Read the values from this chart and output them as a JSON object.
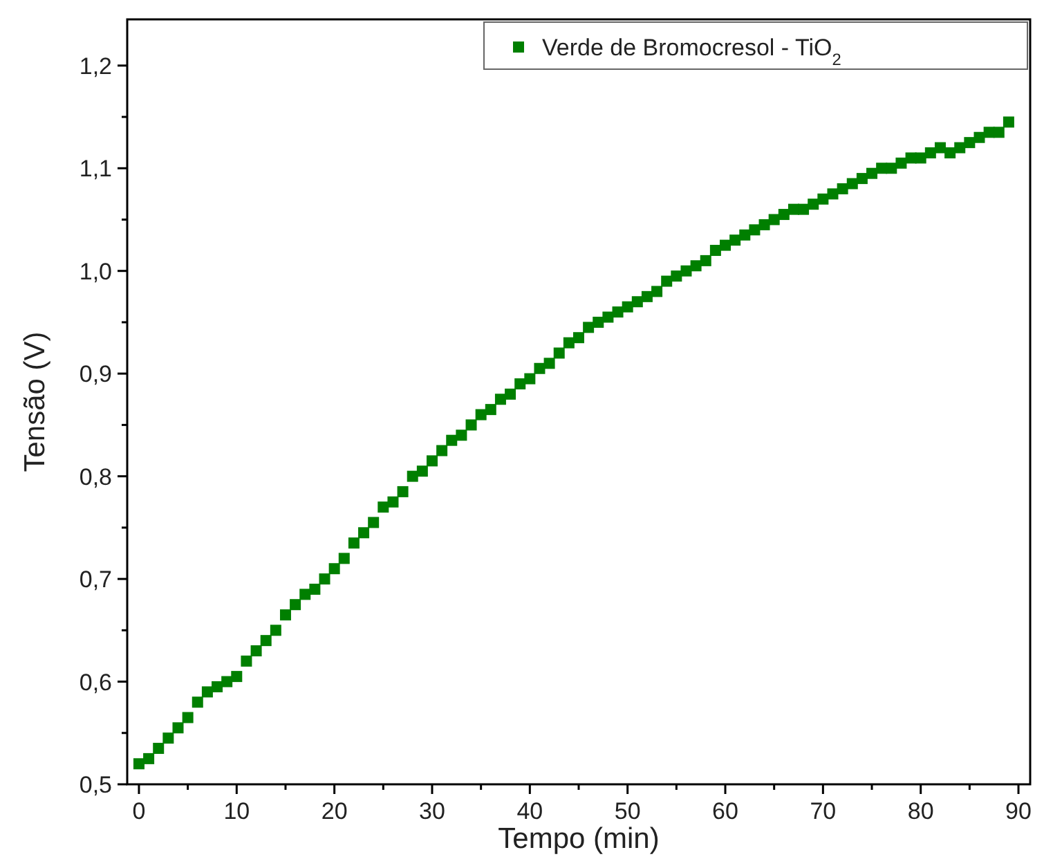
{
  "chart_data": {
    "type": "scatter",
    "xlabel": "Tempo (min)",
    "ylabel": "Tensão (V)",
    "xlim": [
      -1.2,
      91.2
    ],
    "ylim": [
      0.5,
      1.245
    ],
    "xticks": [
      0,
      {
        "value": 5,
        "label": null
      },
      10,
      {
        "value": 15,
        "label": null
      },
      20,
      {
        "value": 25,
        "label": null
      },
      30,
      {
        "value": 35,
        "label": null
      },
      40,
      {
        "value": 45,
        "label": null
      },
      50,
      {
        "value": 55,
        "label": null
      },
      60,
      {
        "value": 65,
        "label": null
      },
      70,
      {
        "value": 75,
        "label": null
      },
      80,
      {
        "value": 85,
        "label": null
      },
      90
    ],
    "yticks": [
      {
        "value": 0.5,
        "label": "0,5"
      },
      {
        "value": 0.55,
        "label": null
      },
      {
        "value": 0.6,
        "label": "0,6"
      },
      {
        "value": 0.65,
        "label": null
      },
      {
        "value": 0.7,
        "label": "0,7"
      },
      {
        "value": 0.75,
        "label": null
      },
      {
        "value": 0.8,
        "label": "0,8"
      },
      {
        "value": 0.85,
        "label": null
      },
      {
        "value": 0.9,
        "label": "0,9"
      },
      {
        "value": 0.95,
        "label": null
      },
      {
        "value": 1.0,
        "label": "1,0"
      },
      {
        "value": 1.05,
        "label": null
      },
      {
        "value": 1.1,
        "label": "1,1"
      },
      {
        "value": 1.15,
        "label": null
      },
      {
        "value": 1.2,
        "label": "1,2"
      }
    ],
    "marker": "square",
    "legend": "top right",
    "grid": false,
    "x": [
      0,
      1,
      2,
      3,
      4,
      5,
      6,
      7,
      8,
      9,
      10,
      11,
      12,
      13,
      14,
      15,
      16,
      17,
      18,
      19,
      20,
      21,
      22,
      23,
      24,
      25,
      26,
      27,
      28,
      29,
      30,
      31,
      32,
      33,
      34,
      35,
      36,
      37,
      38,
      39,
      40,
      41,
      42,
      43,
      44,
      45,
      46,
      47,
      48,
      49,
      50,
      51,
      52,
      53,
      54,
      55,
      56,
      57,
      58,
      59,
      60,
      61,
      62,
      63,
      64,
      65,
      66,
      67,
      68,
      69,
      70,
      71,
      72,
      73,
      74,
      75,
      76,
      77,
      78,
      79,
      80,
      81,
      82,
      83,
      84,
      85,
      86,
      87,
      88,
      89
    ],
    "series": [
      {
        "name": "Verde de Bromocresol - TiO$_{2}$",
        "color": "#007f00",
        "values": [
          0.52,
          0.525,
          0.535,
          0.545,
          0.555,
          0.565,
          0.58,
          0.59,
          0.595,
          0.6,
          0.605,
          0.62,
          0.63,
          0.64,
          0.65,
          0.665,
          0.675,
          0.685,
          0.69,
          0.7,
          0.71,
          0.72,
          0.735,
          0.745,
          0.755,
          0.77,
          0.775,
          0.785,
          0.8,
          0.805,
          0.815,
          0.825,
          0.835,
          0.84,
          0.85,
          0.86,
          0.865,
          0.875,
          0.88,
          0.89,
          0.895,
          0.905,
          0.91,
          0.92,
          0.93,
          0.935,
          0.945,
          0.95,
          0.955,
          0.96,
          0.965,
          0.97,
          0.975,
          0.98,
          0.99,
          0.995,
          1.0,
          1.005,
          1.01,
          1.02,
          1.025,
          1.03,
          1.035,
          1.04,
          1.045,
          1.05,
          1.055,
          1.06,
          1.06,
          1.065,
          1.07,
          1.075,
          1.08,
          1.085,
          1.09,
          1.095,
          1.1,
          1.1,
          1.105,
          1.11,
          1.11,
          1.115,
          1.12,
          1.115,
          1.12,
          1.125,
          1.13,
          1.135,
          1.135,
          1.145
        ]
      }
    ]
  }
}
